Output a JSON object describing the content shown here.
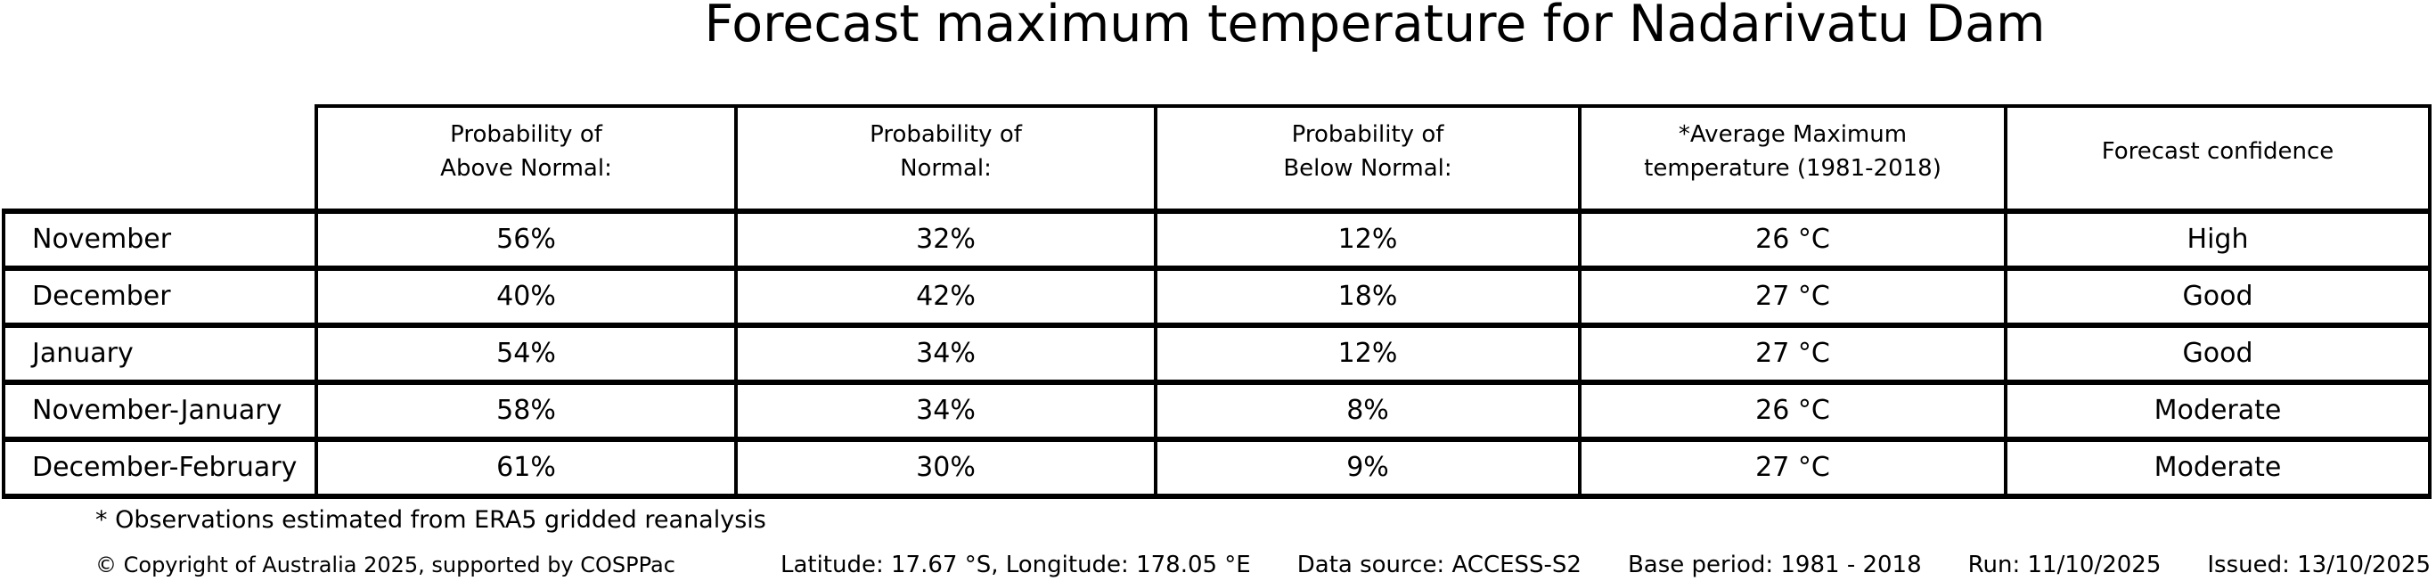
{
  "chart_data": {
    "type": "table",
    "title": "Forecast maximum temperature for Nadarivatu Dam",
    "column_headers": [
      "Probability of\nAbove Normal:",
      "Probability of\nNormal:",
      "Probability of\nBelow Normal:",
      "*Average Maximum\ntemperature (1981-2018)",
      "Forecast confidence"
    ],
    "rows": [
      {
        "label": "November",
        "above_normal": "56%",
        "normal": "32%",
        "below_normal": "12%",
        "avg_max_temp": "26 °C",
        "confidence": "High"
      },
      {
        "label": "December",
        "above_normal": "40%",
        "normal": "42%",
        "below_normal": "18%",
        "avg_max_temp": "27 °C",
        "confidence": "Good"
      },
      {
        "label": "January",
        "above_normal": "54%",
        "normal": "34%",
        "below_normal": "12%",
        "avg_max_temp": "27 °C",
        "confidence": "Good"
      },
      {
        "label": "November-January",
        "above_normal": "58%",
        "normal": "34%",
        "below_normal": "8%",
        "avg_max_temp": "26 °C",
        "confidence": "Moderate"
      },
      {
        "label": "December-February",
        "above_normal": "61%",
        "normal": "30%",
        "below_normal": "9%",
        "avg_max_temp": "27 °C",
        "confidence": "Moderate"
      }
    ]
  },
  "footnote": "* Observations estimated from ERA5 gridded reanalysis",
  "footer": {
    "copyright": "© Copyright of Australia 2025, supported by COSPPac",
    "location": "Latitude: 17.67 °S, Longitude: 178.05 °E",
    "data_source": "Data source: ACCESS-S2",
    "base_period": "Base period: 1981 - 2018",
    "run": "Run: 11/10/2025",
    "issued": "Issued: 13/10/2025"
  },
  "colors": {
    "text": "#000000",
    "background": "#ffffff",
    "border": "#000000"
  }
}
